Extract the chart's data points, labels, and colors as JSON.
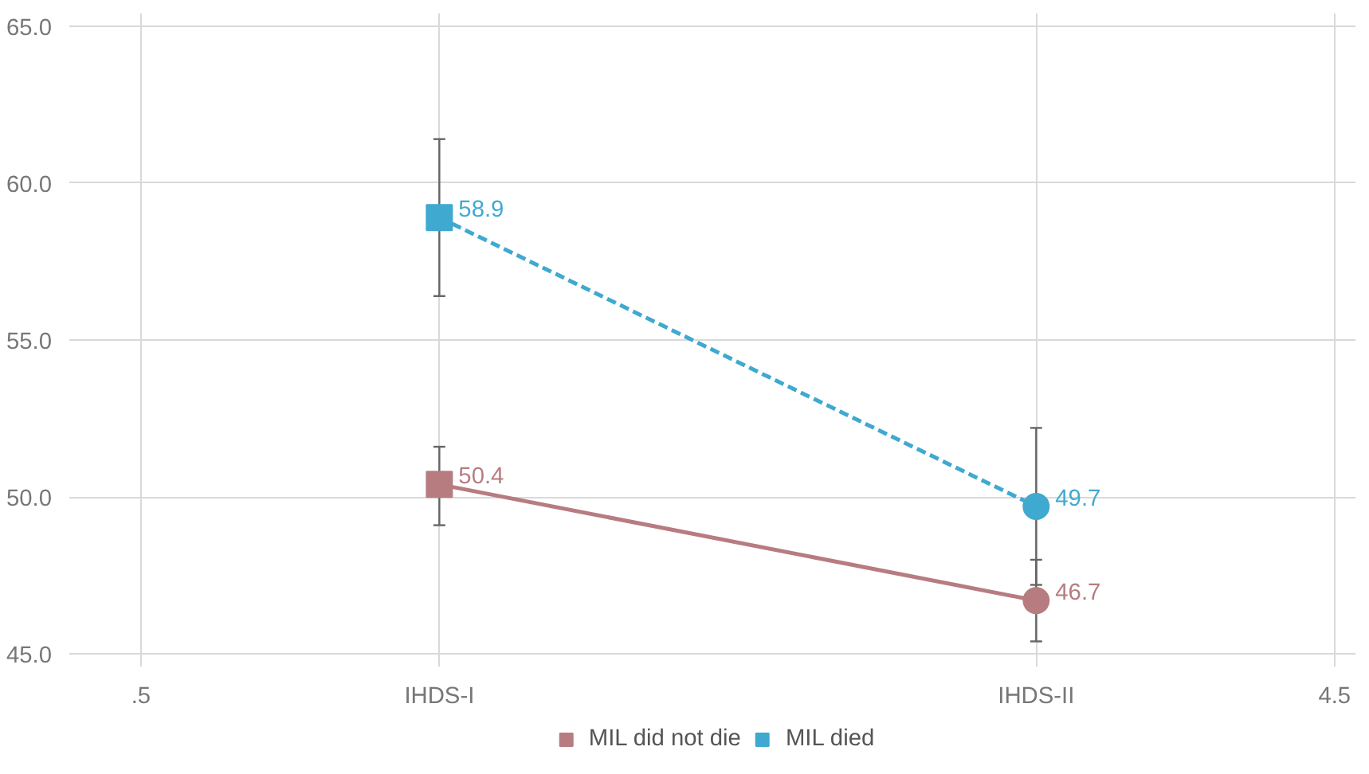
{
  "chart_data": {
    "type": "line",
    "x": [
      1.5,
      3.5
    ],
    "series": [
      {
        "name": "MIL did not die",
        "color": "#b77c80",
        "values": [
          50.4,
          46.7
        ],
        "errors": [
          [
            49.1,
            51.6
          ],
          [
            45.4,
            48.0
          ]
        ],
        "line_style": "solid",
        "marker": [
          "square",
          "circle"
        ]
      },
      {
        "name": "MIL died",
        "color": "#3fa9d0",
        "values": [
          58.9,
          49.7
        ],
        "errors": [
          [
            56.4,
            61.4
          ],
          [
            47.2,
            52.2
          ]
        ],
        "line_style": "dashed",
        "marker": [
          "square",
          "circle"
        ]
      }
    ],
    "xlim": [
      0.26,
      4.57
    ],
    "xticks": [
      {
        "value": 0.5,
        "label": ".5"
      },
      {
        "value": 1.5,
        "label": "IHDS-I"
      },
      {
        "value": 3.5,
        "label": "IHDS-II"
      },
      4.5
    ],
    "ylim": [
      44.6,
      65.4
    ],
    "yticks": [
      {
        "value": 45,
        "label": "45.0"
      },
      {
        "value": 50,
        "label": "50.0"
      },
      {
        "value": 55,
        "label": "55.0"
      },
      {
        "value": 60,
        "label": "60.0"
      },
      {
        "value": 65,
        "label": "65.0"
      }
    ],
    "grid": true,
    "legend": "bottom",
    "data_labels": true
  }
}
